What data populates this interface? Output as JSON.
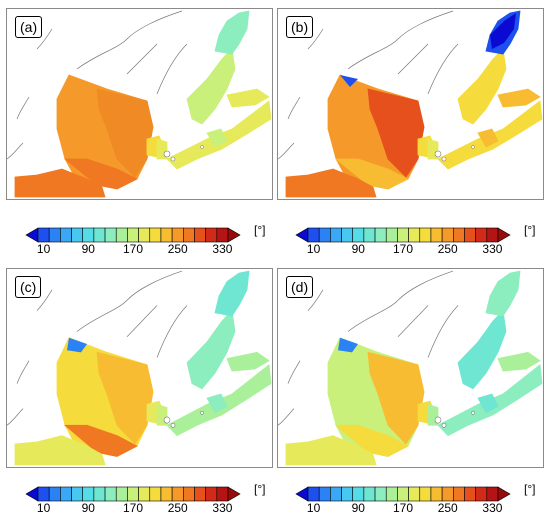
{
  "panels": [
    {
      "label": "(a)",
      "scheme": "a"
    },
    {
      "label": "(b)",
      "scheme": "b"
    },
    {
      "label": "(c)",
      "scheme": "c"
    },
    {
      "label": "(d)",
      "scheme": "d"
    }
  ],
  "colorbar": {
    "ticks": [
      "10",
      "90",
      "170",
      "250",
      "330"
    ],
    "unit": "[°]",
    "colors": [
      "#0a0ad2",
      "#1e50f0",
      "#2a82f5",
      "#3aa8f5",
      "#46c8f0",
      "#55dce6",
      "#6ee6d2",
      "#8ceebe",
      "#aaf09a",
      "#c8f07a",
      "#e6ea5a",
      "#f5dc3c",
      "#f8bc32",
      "#f59a2a",
      "#f07822",
      "#e6501c",
      "#d22a18",
      "#b41414",
      "#960c0c"
    ]
  }
}
